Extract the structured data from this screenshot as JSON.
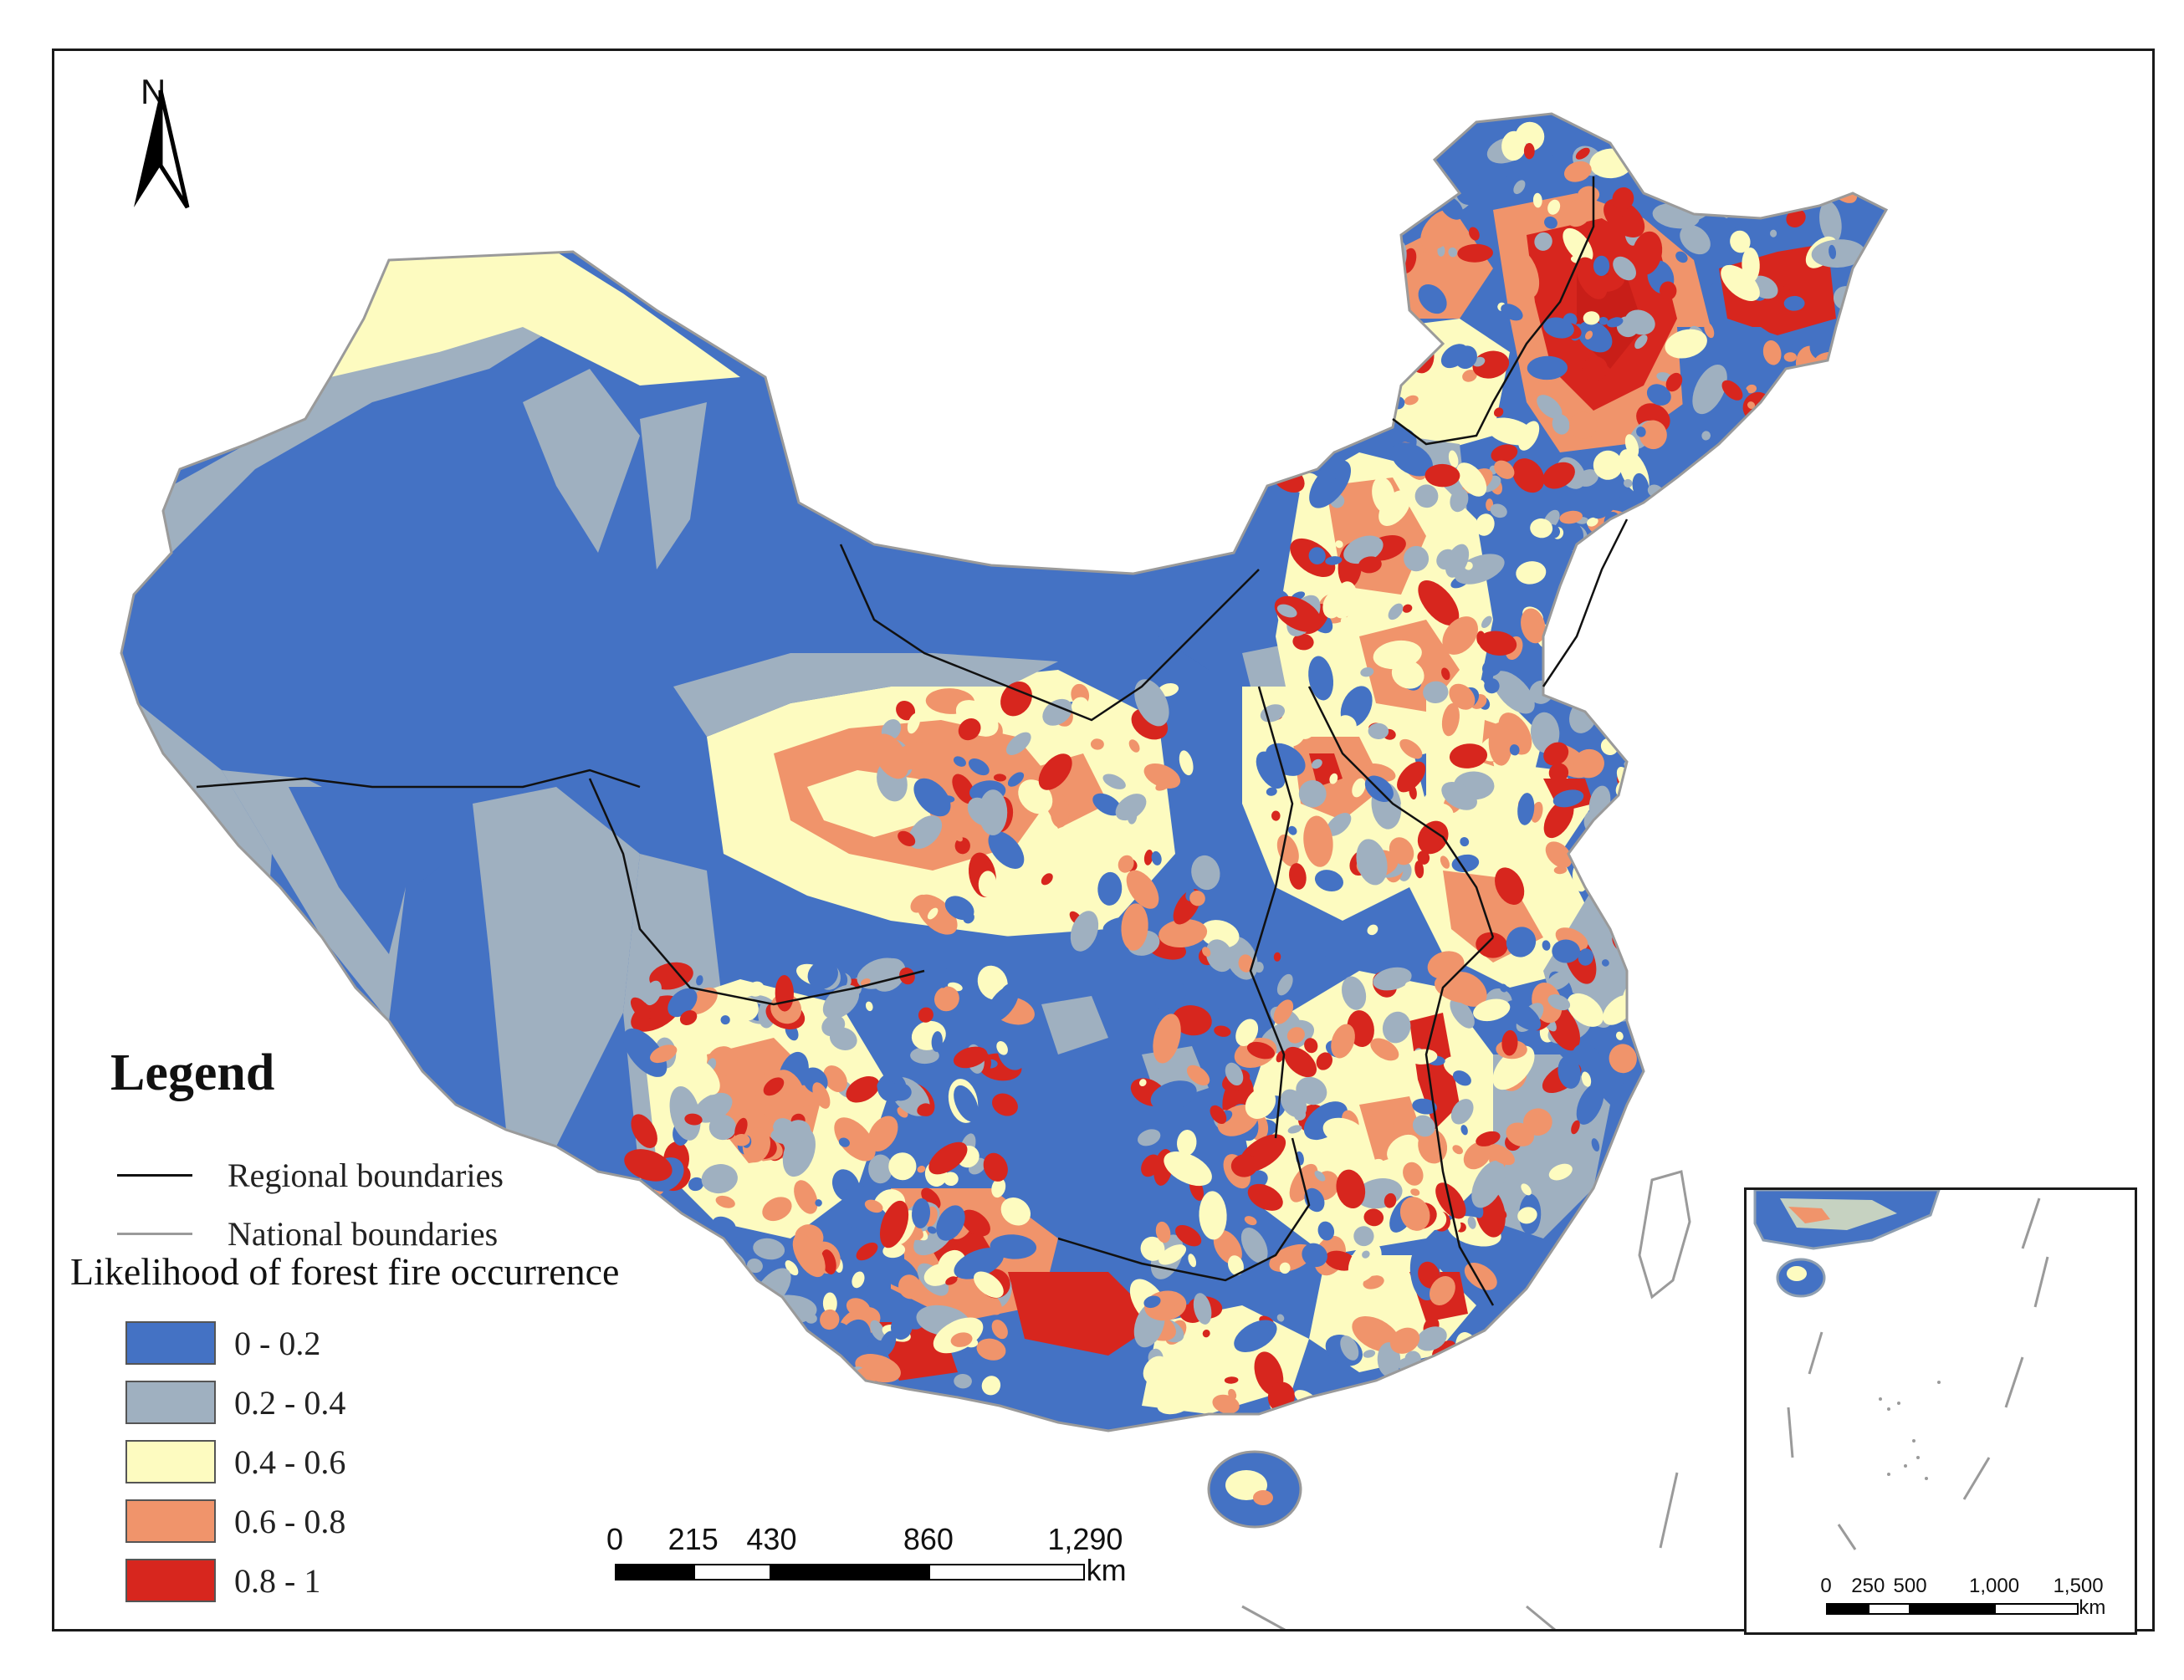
{
  "north_arrow": {
    "letter": "N"
  },
  "legend": {
    "title": "Legend",
    "lines": [
      {
        "label": "Regional boundaries",
        "color": "#111111"
      },
      {
        "label": "National boundaries",
        "color": "#9a9a9a"
      }
    ],
    "classes_title": "Likelihood of forest fire occurrence",
    "classes": [
      {
        "label": "0 - 0.2",
        "color": "#4472c4"
      },
      {
        "label": "0.2 - 0.4",
        "color": "#9fb0c0"
      },
      {
        "label": "0.4 - 0.6",
        "color": "#fdfbc0"
      },
      {
        "label": "0.6 - 0.8",
        "color": "#f0946b"
      },
      {
        "label": "0.8 - 1",
        "color": "#d7261e"
      }
    ]
  },
  "scale_main": {
    "ticks": [
      "0",
      "215",
      "430",
      "860",
      "1,290"
    ],
    "unit": "km"
  },
  "scale_inset": {
    "ticks": [
      "0",
      "250",
      "500",
      "1,000",
      "1,500"
    ],
    "unit": "km"
  }
}
